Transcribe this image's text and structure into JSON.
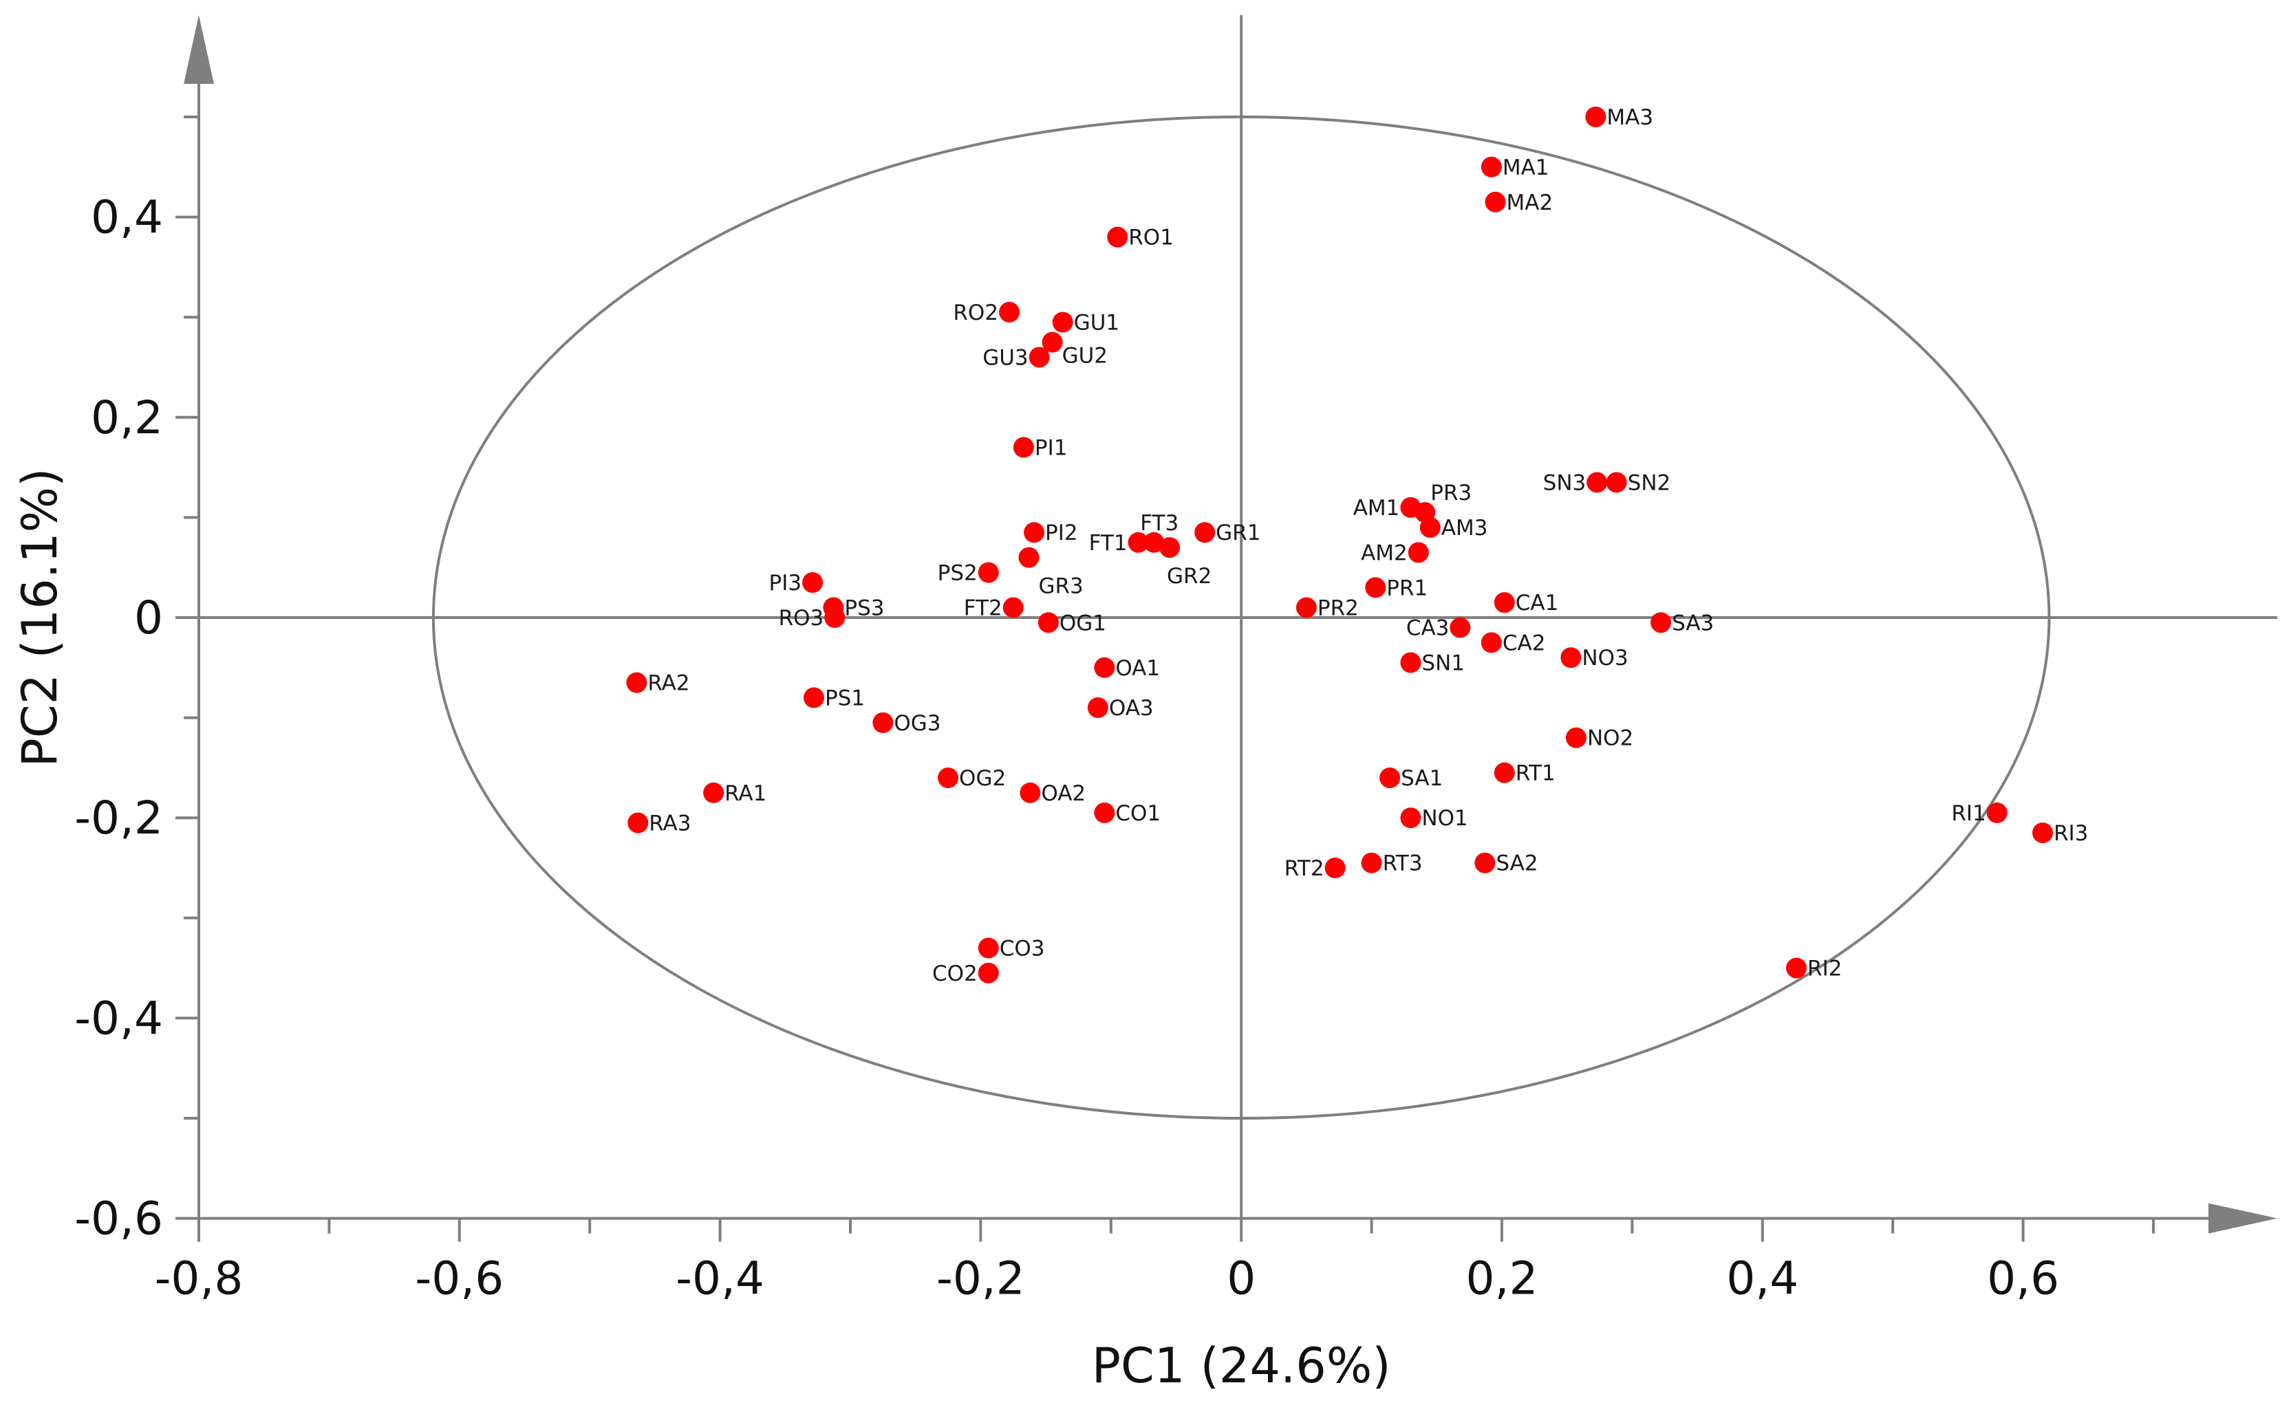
{
  "chart_data": {
    "type": "scatter",
    "title": "",
    "xlabel": "PC1 (24.6%)",
    "ylabel": "PC2 (16.1%)",
    "xlim": [
      -0.8,
      0.7
    ],
    "ylim": [
      -0.6,
      0.55
    ],
    "x_ticks": [
      -0.8,
      -0.6,
      -0.4,
      -0.2,
      0,
      0.2,
      0.4,
      0.6
    ],
    "x_tick_labels": [
      "-0,8",
      "-0,6",
      "-0,4",
      "-0,2",
      "0",
      "0,2",
      "0,4",
      "0,6"
    ],
    "y_ticks": [
      0.4,
      0.2,
      0,
      -0.2,
      -0.4,
      -0.6
    ],
    "y_tick_labels": [
      "0,4",
      "0,2",
      "0",
      "-0,2",
      "-0,4",
      "-0,6"
    ],
    "marker_color": "#ff0000",
    "ellipse": {
      "cx": 0,
      "cy": 0,
      "rx": 0.62,
      "ry": 0.5,
      "color": "#7f7f7f"
    },
    "points": [
      {
        "label": "MA3",
        "x": 0.272,
        "y": 0.5
      },
      {
        "label": "MA1",
        "x": 0.192,
        "y": 0.45
      },
      {
        "label": "MA2",
        "x": 0.195,
        "y": 0.415
      },
      {
        "label": "RO1",
        "x": -0.095,
        "y": 0.38
      },
      {
        "label": "RO2",
        "x": -0.178,
        "y": 0.305
      },
      {
        "label": "GU1",
        "x": -0.137,
        "y": 0.295
      },
      {
        "label": "GU2",
        "x": -0.145,
        "y": 0.275
      },
      {
        "label": "GU3",
        "x": -0.155,
        "y": 0.26
      },
      {
        "label": "PI1",
        "x": -0.167,
        "y": 0.17
      },
      {
        "label": "SN3",
        "x": 0.273,
        "y": 0.135
      },
      {
        "label": "SN2",
        "x": 0.288,
        "y": 0.135
      },
      {
        "label": "AM1",
        "x": 0.13,
        "y": 0.11
      },
      {
        "label": "PR3",
        "x": 0.141,
        "y": 0.105
      },
      {
        "label": "AM3",
        "x": 0.145,
        "y": 0.09
      },
      {
        "label": "AM2",
        "x": 0.136,
        "y": 0.065
      },
      {
        "label": "PI2",
        "x": -0.159,
        "y": 0.085
      },
      {
        "label": "GR1",
        "x": -0.028,
        "y": 0.085
      },
      {
        "label": "FT3",
        "x": -0.067,
        "y": 0.075
      },
      {
        "label": "FT1",
        "x": -0.079,
        "y": 0.075
      },
      {
        "label": "GR2",
        "x": -0.055,
        "y": 0.07
      },
      {
        "label": "GR3",
        "x": -0.163,
        "y": 0.06
      },
      {
        "label": "PS2",
        "x": -0.194,
        "y": 0.045
      },
      {
        "label": "PI3",
        "x": -0.329,
        "y": 0.035
      },
      {
        "label": "PR1",
        "x": 0.103,
        "y": 0.03
      },
      {
        "label": "CA1",
        "x": 0.202,
        "y": 0.015
      },
      {
        "label": "PS3",
        "x": -0.313,
        "y": 0.01
      },
      {
        "label": "FT2",
        "x": -0.175,
        "y": 0.01
      },
      {
        "label": "PR2",
        "x": 0.05,
        "y": 0.01
      },
      {
        "label": "RO3",
        "x": -0.312,
        "y": 0
      },
      {
        "label": "OG1",
        "x": -0.148,
        "y": -0.005
      },
      {
        "label": "SA3",
        "x": 0.322,
        "y": -0.005
      },
      {
        "label": "CA3",
        "x": 0.168,
        "y": -0.01
      },
      {
        "label": "CA2",
        "x": 0.192,
        "y": -0.025
      },
      {
        "label": "NO3",
        "x": 0.253,
        "y": -0.04
      },
      {
        "label": "SN1",
        "x": 0.13,
        "y": -0.045
      },
      {
        "label": "OA1",
        "x": -0.105,
        "y": -0.05
      },
      {
        "label": "RA2",
        "x": -0.464,
        "y": -0.065
      },
      {
        "label": "PS1",
        "x": -0.328,
        "y": -0.08
      },
      {
        "label": "OA3",
        "x": -0.11,
        "y": -0.09
      },
      {
        "label": "OG3",
        "x": -0.275,
        "y": -0.105
      },
      {
        "label": "NO2",
        "x": 0.257,
        "y": -0.12
      },
      {
        "label": "RT1",
        "x": 0.202,
        "y": -0.155
      },
      {
        "label": "SA1",
        "x": 0.114,
        "y": -0.16
      },
      {
        "label": "OG2",
        "x": -0.225,
        "y": -0.16
      },
      {
        "label": "RA1",
        "x": -0.405,
        "y": -0.175
      },
      {
        "label": "OA2",
        "x": -0.162,
        "y": -0.175
      },
      {
        "label": "CO1",
        "x": -0.105,
        "y": -0.195
      },
      {
        "label": "RI1",
        "x": 0.58,
        "y": -0.195
      },
      {
        "label": "NO1",
        "x": 0.13,
        "y": -0.2
      },
      {
        "label": "RA3",
        "x": -0.463,
        "y": -0.205
      },
      {
        "label": "RI3",
        "x": 0.615,
        "y": -0.215
      },
      {
        "label": "RT3",
        "x": 0.1,
        "y": -0.245
      },
      {
        "label": "SA2",
        "x": 0.187,
        "y": -0.245
      },
      {
        "label": "RT2",
        "x": 0.072,
        "y": -0.25
      },
      {
        "label": "CO3",
        "x": -0.194,
        "y": -0.33
      },
      {
        "label": "CO2",
        "x": -0.194,
        "y": -0.355
      },
      {
        "label": "RI2",
        "x": 0.426,
        "y": -0.35
      }
    ]
  }
}
